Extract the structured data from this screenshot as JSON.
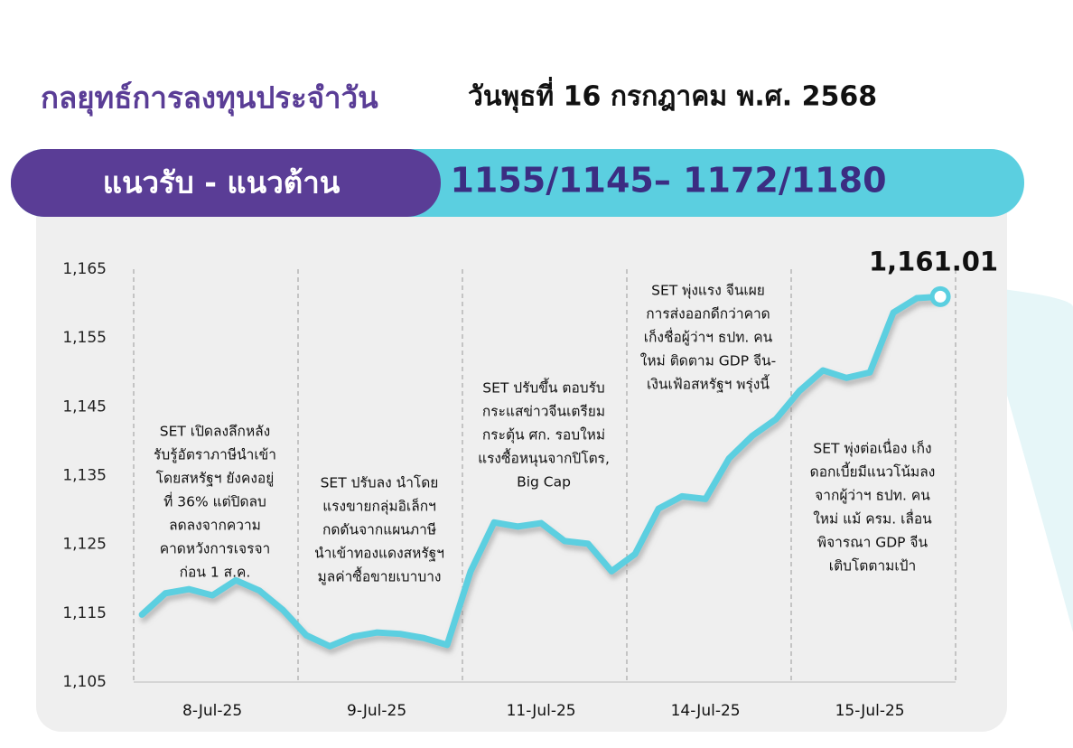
{
  "header": {
    "title": "กลยุทธ์การลงทุนประจำวัน",
    "date": "วันพุธที่ 16 กรกฎาคม พ.ศ. 2568"
  },
  "banner": {
    "label": "แนวรับ - แนวต้าน",
    "levels": "1155/1145– 1172/1180"
  },
  "chart_data": {
    "type": "line",
    "categories": [
      null,
      null,
      null,
      "8-Jul-25",
      null,
      null,
      null,
      null,
      null,
      null,
      "9-Jul-25",
      null,
      null,
      null,
      null,
      null,
      null,
      "11-Jul-25",
      null,
      null,
      null,
      null,
      null,
      null,
      "14-Jul-25",
      null,
      null,
      null,
      null,
      null,
      null,
      "15-Jul-25",
      null,
      null,
      null
    ],
    "series": [
      {
        "name": "SET",
        "color": "#5bcfe0",
        "values": [
          1114.8,
          1117.9,
          1118.5,
          1117.6,
          1119.8,
          1118.3,
          1115.5,
          1111.8,
          1110.2,
          1111.6,
          1112.2,
          1112.0,
          1111.4,
          1110.4,
          1121.1,
          1128.2,
          1127.6,
          1128.1,
          1125.5,
          1125.1,
          1121.1,
          1123.6,
          1130.2,
          1132.0,
          1131.6,
          1137.5,
          1140.8,
          1143.2,
          1147.3,
          1150.3,
          1149.2,
          1150.0,
          1158.7,
          1160.8,
          1161.01
        ],
        "value_labels": [
          null,
          null,
          null,
          null,
          null,
          null,
          null,
          null,
          null,
          null,
          null,
          null,
          null,
          null,
          null,
          null,
          null,
          null,
          null,
          null,
          null,
          null,
          null,
          null,
          null,
          null,
          null,
          null,
          null,
          null,
          null,
          null,
          null,
          null,
          "1,161.01"
        ]
      }
    ],
    "ylim": [
      1105,
      1165
    ],
    "yticks": [
      {
        "value": 1105,
        "label": "1,105"
      },
      {
        "value": 1115,
        "label": "1,115"
      },
      {
        "value": 1125,
        "label": "1,125"
      },
      {
        "value": 1135,
        "label": "1,135"
      },
      {
        "value": 1145,
        "label": "1,145"
      },
      {
        "value": 1155,
        "label": "1,155"
      },
      {
        "value": 1165,
        "label": "1,165"
      }
    ],
    "annotations": [
      [
        "SET เปิดลงลึกหลัง",
        "รับรู้อัตราภาษีนำเข้า",
        "โดยสหรัฐฯ ยังคงอยู่",
        "ที่ 36% แต่ปิดลบ",
        "ลดลงจากความ",
        "คาดหวังการเจรจา",
        "ก่อน 1 ส.ค."
      ],
      [
        "SET ปรับลง นำโดย",
        "แรงขายกลุ่มอิเล็กฯ",
        "กดดันจากแผนภาษี",
        "นำเข้าทองแดงสหรัฐฯ",
        "มูลค่าซื้อขายเบาบาง"
      ],
      [
        "SET ปรับขึ้น ตอบรับ",
        "กระแสข่าวจีนเตรียม",
        "กระตุ้น ศก. รอบใหม่",
        "แรงซื้อหนุนจากปิโตร,",
        "Big Cap"
      ],
      [
        "SET พุ่งแรง จีนเผย",
        "การส่งออกดีกว่าคาด",
        "เก็งชื่อผู้ว่าฯ ธปท. คน",
        "ใหม่ ติดตาม GDP จีน-",
        "เงินเฟ้อสหรัฐฯ พรุ่งนี้"
      ],
      [
        "SET พุ่งต่อเนื่อง เก็ง",
        "ดอกเบี้ยมีแนวโน้มลง",
        "จากผู้ว่าฯ ธปท. คน",
        "ใหม่ แม้ ครม. เลื่อน",
        "พิจารณา GDP จีน",
        "เติบโตตามเป้า"
      ]
    ]
  }
}
